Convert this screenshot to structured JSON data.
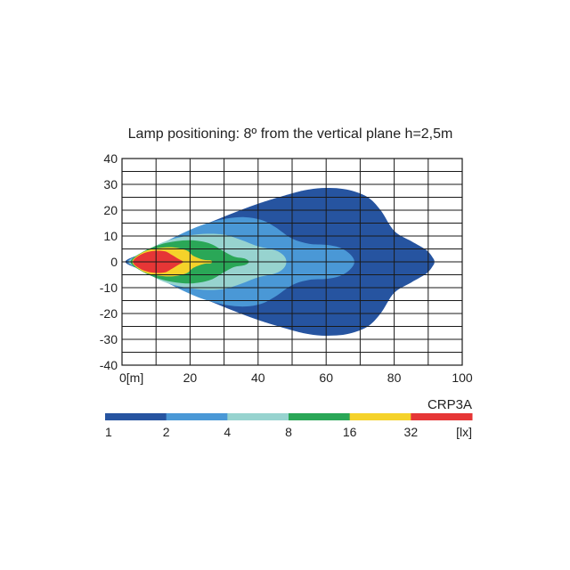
{
  "chart_data": {
    "type": "isolux-contour",
    "title": "Lamp positioning: 8º from the vertical plane h=2,5m",
    "x_axis": {
      "range": [
        0,
        100
      ],
      "ticks": [
        0,
        20,
        40,
        60,
        80,
        100
      ],
      "tick_labels": [
        "0[m]",
        "20",
        "40",
        "60",
        "80",
        "100"
      ],
      "grid_step": 10
    },
    "y_axis": {
      "range": [
        -40,
        40
      ],
      "ticks": [
        40,
        30,
        20,
        10,
        0,
        -10,
        -20,
        -30,
        -40
      ],
      "tick_labels": [
        "40",
        "30",
        "20",
        "10",
        "0",
        "-10",
        "-20",
        "-30",
        "-40"
      ],
      "grid_step": 5
    },
    "grid": true,
    "model_label": "CRP3A",
    "legend": {
      "unit": "[lx]",
      "tick_labels": [
        "1",
        "2",
        "4",
        "8",
        "16",
        "32"
      ],
      "bands": [
        {
          "lux": 1,
          "color": "#2654a0"
        },
        {
          "lux": 2,
          "color": "#4a98d6"
        },
        {
          "lux": 4,
          "color": "#97d3cf"
        },
        {
          "lux": 8,
          "color": "#2aa757"
        },
        {
          "lux": 16,
          "color": "#f5d22a"
        },
        {
          "lux": 32,
          "color": "#e63636"
        }
      ]
    },
    "contours": [
      {
        "lux": 1,
        "color": "#2654a0",
        "upper": [
          [
            1,
            0
          ],
          [
            6,
            3.3
          ],
          [
            12,
            7.2
          ],
          [
            20,
            12
          ],
          [
            30,
            17.5
          ],
          [
            40,
            22.5
          ],
          [
            50,
            26.5
          ],
          [
            55,
            28
          ],
          [
            60,
            28.6
          ],
          [
            66,
            28
          ],
          [
            72,
            25.2
          ],
          [
            76,
            20
          ],
          [
            80,
            12
          ],
          [
            85,
            8
          ],
          [
            89.5,
            4.5
          ],
          [
            91.5,
            1.3
          ],
          [
            91.8,
            0
          ]
        ],
        "lower": [
          [
            1,
            0
          ],
          [
            6,
            -3.3
          ],
          [
            12,
            -7.2
          ],
          [
            20,
            -12
          ],
          [
            30,
            -17.5
          ],
          [
            40,
            -22.5
          ],
          [
            50,
            -26.5
          ],
          [
            55,
            -28
          ],
          [
            60,
            -28.6
          ],
          [
            66,
            -28
          ],
          [
            72,
            -25.2
          ],
          [
            76,
            -20
          ],
          [
            80,
            -12
          ],
          [
            85,
            -8
          ],
          [
            89.5,
            -4.5
          ],
          [
            91.5,
            -1.3
          ],
          [
            91.8,
            0
          ]
        ]
      },
      {
        "lux": 2,
        "color": "#4a98d6",
        "upper": [
          [
            1.5,
            0
          ],
          [
            6,
            3.2
          ],
          [
            12,
            7.3
          ],
          [
            18,
            11.2
          ],
          [
            24,
            14.5
          ],
          [
            30,
            16.6
          ],
          [
            36,
            17.3
          ],
          [
            41,
            16.2
          ],
          [
            45,
            13.5
          ],
          [
            50,
            9
          ],
          [
            55,
            7
          ],
          [
            60,
            6.6
          ],
          [
            64,
            5.5
          ],
          [
            67,
            3
          ],
          [
            68.3,
            0
          ]
        ],
        "lower": [
          [
            1.5,
            0
          ],
          [
            6,
            -3.2
          ],
          [
            12,
            -7.3
          ],
          [
            18,
            -11.2
          ],
          [
            24,
            -14.5
          ],
          [
            30,
            -16.6
          ],
          [
            36,
            -17.3
          ],
          [
            41,
            -16.2
          ],
          [
            45,
            -13.5
          ],
          [
            50,
            -9
          ],
          [
            55,
            -7
          ],
          [
            60,
            -6.6
          ],
          [
            64,
            -5.5
          ],
          [
            67,
            -3
          ],
          [
            68.3,
            0
          ]
        ]
      },
      {
        "lux": 4,
        "color": "#97d3cf",
        "upper": [
          [
            2,
            0
          ],
          [
            6,
            3.4
          ],
          [
            12,
            7.6
          ],
          [
            18,
            9.8
          ],
          [
            24,
            10.8
          ],
          [
            30,
            10.5
          ],
          [
            35,
            8.5
          ],
          [
            40,
            6
          ],
          [
            45,
            4.5
          ],
          [
            47.5,
            2.5
          ],
          [
            48.3,
            0
          ]
        ],
        "lower": [
          [
            2,
            0
          ],
          [
            6,
            -3.4
          ],
          [
            12,
            -7.6
          ],
          [
            18,
            -9.8
          ],
          [
            24,
            -10.8
          ],
          [
            30,
            -10.5
          ],
          [
            35,
            -8.5
          ],
          [
            40,
            -6
          ],
          [
            45,
            -4.5
          ],
          [
            47.5,
            -2.5
          ],
          [
            48.3,
            0
          ]
        ]
      },
      {
        "lux": 8,
        "color": "#2aa757",
        "upper": [
          [
            2.5,
            0
          ],
          [
            6,
            3.8
          ],
          [
            11,
            6.6
          ],
          [
            16,
            8
          ],
          [
            21,
            8.3
          ],
          [
            26,
            7
          ],
          [
            30,
            4
          ],
          [
            33,
            2
          ],
          [
            36,
            1.3
          ],
          [
            37.3,
            0
          ]
        ],
        "lower": [
          [
            2.5,
            0
          ],
          [
            6,
            -3.8
          ],
          [
            11,
            -6.6
          ],
          [
            16,
            -8
          ],
          [
            21,
            -8.3
          ],
          [
            26,
            -7
          ],
          [
            30,
            -4
          ],
          [
            33,
            -2
          ],
          [
            36,
            -1.3
          ],
          [
            37.3,
            0
          ]
        ]
      },
      {
        "lux": 16,
        "color": "#f5d22a",
        "upper": [
          [
            3,
            0
          ],
          [
            6,
            3.6
          ],
          [
            10,
            5.2
          ],
          [
            15,
            5.6
          ],
          [
            19,
            4.4
          ],
          [
            21,
            2.3
          ],
          [
            24,
            0.8
          ],
          [
            26,
            0.6
          ],
          [
            26.5,
            0
          ]
        ],
        "lower": [
          [
            3,
            0
          ],
          [
            6,
            -3.6
          ],
          [
            10,
            -5.2
          ],
          [
            15,
            -5.6
          ],
          [
            19,
            -4.4
          ],
          [
            21,
            -2.3
          ],
          [
            24,
            -0.8
          ],
          [
            26,
            -0.6
          ],
          [
            26.5,
            0
          ]
        ]
      },
      {
        "lux": 32,
        "color": "#e63636",
        "upper": [
          [
            3.2,
            0
          ],
          [
            5.5,
            2.8
          ],
          [
            9,
            4.2
          ],
          [
            12.5,
            4.1
          ],
          [
            14.5,
            2.8
          ],
          [
            16.5,
            1.2
          ],
          [
            17.8,
            0.3
          ],
          [
            18,
            0
          ]
        ],
        "lower": [
          [
            3.2,
            0
          ],
          [
            5.5,
            -2.8
          ],
          [
            9,
            -4.2
          ],
          [
            12.5,
            -4.1
          ],
          [
            14.5,
            -2.8
          ],
          [
            16.5,
            -1.2
          ],
          [
            17.8,
            -0.3
          ],
          [
            18,
            0
          ]
        ]
      }
    ]
  }
}
